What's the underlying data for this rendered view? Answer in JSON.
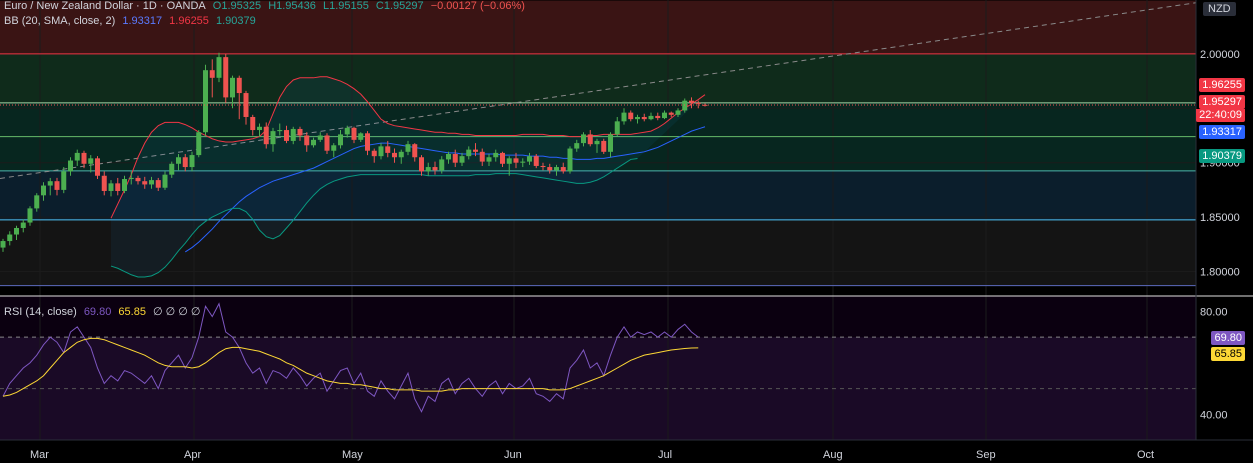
{
  "header": {
    "symbol": "Euro / New Zealand Dollar · 1D · OANDA",
    "open": "O1.95325",
    "high": "H1.95436",
    "low": "L1.95155",
    "close": "C1.95297",
    "change": "−0.00127 (−0.06%)",
    "bb_label": "BB (20, SMA, close, 2)",
    "bb_basis": "1.93317",
    "bb_upper": "1.96255",
    "bb_lower": "1.90379",
    "rsi_label": "RSI (14, close)",
    "rsi_value": "69.80",
    "rsi_ma": "65.85",
    "rsi_extra": "∅ ∅ ∅ ∅"
  },
  "currency": "NZD",
  "price_labels": {
    "upper": "1.96255",
    "last": "1.95297",
    "countdown": "22:40:09",
    "basis": "1.93317",
    "lower": "1.90379",
    "rsi": "69.80",
    "rsi_ma": "65.85"
  },
  "colors": {
    "up": "#26a69a",
    "down": "#ef5350",
    "upper_band": "#f23645",
    "basis": "#2962ff",
    "lower_band": "#089981",
    "rsi": "#7e57c2",
    "rsi_ma": "#fdd835"
  },
  "chart_data": [
    {
      "type": "candlestick",
      "title": "Euro / New Zealand Dollar · 1D · OANDA",
      "x_ticks": [
        "Mar",
        "Apr",
        "May",
        "Jun",
        "Jul",
        "Aug",
        "Sep",
        "Oct"
      ],
      "y_ticks": [
        "2.00000",
        "1.95000",
        "1.90000",
        "1.85000",
        "1.80000"
      ],
      "ylim": [
        1.7775,
        2.0495
      ],
      "zones": [
        {
          "from": 2.0,
          "to": 2.049,
          "color": "#ef5350"
        },
        {
          "from": 1.955,
          "to": 2.0,
          "color": "#26a69a"
        },
        {
          "from": 1.8925,
          "to": 1.955,
          "color": "#00897b"
        },
        {
          "from": 1.8475,
          "to": 1.8925,
          "color": "#1e88e5"
        }
      ],
      "levels": [
        2.0,
        1.955,
        1.924,
        1.8925,
        1.8475,
        1.787
      ],
      "candles": [
        [
          1.822,
          1.83,
          1.818,
          1.828
        ],
        [
          1.828,
          1.837,
          1.824,
          1.834
        ],
        [
          1.834,
          1.842,
          1.829,
          1.84
        ],
        [
          1.84,
          1.848,
          1.836,
          1.845
        ],
        [
          1.845,
          1.86,
          1.842,
          1.858
        ],
        [
          1.858,
          1.872,
          1.855,
          1.87
        ],
        [
          1.87,
          1.882,
          1.865,
          1.879
        ],
        [
          1.879,
          1.886,
          1.87,
          1.883
        ],
        [
          1.883,
          1.886,
          1.87,
          1.875
        ],
        [
          1.875,
          1.896,
          1.872,
          1.892
        ],
        [
          1.892,
          1.905,
          1.888,
          1.902
        ],
        [
          1.902,
          1.912,
          1.897,
          1.909
        ],
        [
          1.909,
          1.911,
          1.895,
          1.899
        ],
        [
          1.899,
          1.907,
          1.891,
          1.904
        ],
        [
          1.904,
          1.906,
          1.885,
          1.888
        ],
        [
          1.888,
          1.892,
          1.87,
          1.874
        ],
        [
          1.874,
          1.884,
          1.869,
          1.881
        ],
        [
          1.881,
          1.886,
          1.87,
          1.874
        ],
        [
          1.874,
          1.888,
          1.872,
          1.885
        ],
        [
          1.885,
          1.892,
          1.88,
          1.886
        ],
        [
          1.886,
          1.888,
          1.88,
          1.883
        ],
        [
          1.883,
          1.887,
          1.876,
          1.88
        ],
        [
          1.88,
          1.887,
          1.876,
          1.884
        ],
        [
          1.884,
          1.886,
          1.874,
          1.877
        ],
        [
          1.877,
          1.892,
          1.875,
          1.889
        ],
        [
          1.889,
          1.901,
          1.886,
          1.899
        ],
        [
          1.899,
          1.908,
          1.893,
          1.905
        ],
        [
          1.905,
          1.908,
          1.892,
          1.896
        ],
        [
          1.896,
          1.91,
          1.892,
          1.907
        ],
        [
          1.907,
          1.93,
          1.905,
          1.928
        ],
        [
          1.928,
          1.99,
          1.925,
          1.985
        ],
        [
          1.985,
          1.995,
          1.96,
          1.978
        ],
        [
          1.978,
          2.001,
          1.974,
          1.997
        ],
        [
          1.997,
          2.0,
          1.955,
          1.96
        ],
        [
          1.96,
          1.98,
          1.95,
          1.978
        ],
        [
          1.978,
          1.98,
          1.94,
          1.964
        ],
        [
          1.964,
          1.966,
          1.935,
          1.942
        ],
        [
          1.942,
          1.944,
          1.925,
          1.93
        ],
        [
          1.93,
          1.936,
          1.924,
          1.933
        ],
        [
          1.933,
          1.937,
          1.913,
          1.917
        ],
        [
          1.917,
          1.932,
          1.91,
          1.929
        ],
        [
          1.929,
          1.936,
          1.925,
          1.93
        ],
        [
          1.93,
          1.934,
          1.918,
          1.92
        ],
        [
          1.92,
          1.933,
          1.917,
          1.931
        ],
        [
          1.931,
          1.933,
          1.92,
          1.925
        ],
        [
          1.925,
          1.928,
          1.91,
          1.916
        ],
        [
          1.916,
          1.923,
          1.914,
          1.921
        ],
        [
          1.921,
          1.928,
          1.919,
          1.925
        ],
        [
          1.925,
          1.927,
          1.908,
          1.911
        ],
        [
          1.911,
          1.918,
          1.905,
          1.916
        ],
        [
          1.916,
          1.93,
          1.913,
          1.926
        ],
        [
          1.926,
          1.934,
          1.923,
          1.932
        ],
        [
          1.932,
          1.933,
          1.918,
          1.921
        ],
        [
          1.921,
          1.928,
          1.919,
          1.927
        ],
        [
          1.927,
          1.929,
          1.907,
          1.911
        ],
        [
          1.911,
          1.913,
          1.9,
          1.906
        ],
        [
          1.906,
          1.918,
          1.903,
          1.915
        ],
        [
          1.915,
          1.92,
          1.905,
          1.909
        ],
        [
          1.909,
          1.913,
          1.9,
          1.905
        ],
        [
          1.905,
          1.912,
          1.899,
          1.91
        ],
        [
          1.91,
          1.92,
          1.907,
          1.917
        ],
        [
          1.917,
          1.918,
          1.901,
          1.905
        ],
        [
          1.905,
          1.907,
          1.888,
          1.892
        ],
        [
          1.892,
          1.9,
          1.888,
          1.896
        ],
        [
          1.896,
          1.901,
          1.889,
          1.893
        ],
        [
          1.893,
          1.906,
          1.89,
          1.903
        ],
        [
          1.903,
          1.91,
          1.899,
          1.908
        ],
        [
          1.908,
          1.912,
          1.896,
          1.9
        ],
        [
          1.9,
          1.909,
          1.897,
          1.906
        ],
        [
          1.906,
          1.915,
          1.903,
          1.912
        ],
        [
          1.912,
          1.918,
          1.906,
          1.91
        ],
        [
          1.91,
          1.913,
          1.897,
          1.901
        ],
        [
          1.901,
          1.908,
          1.897,
          1.905
        ],
        [
          1.905,
          1.912,
          1.901,
          1.909
        ],
        [
          1.909,
          1.91,
          1.896,
          1.899
        ],
        [
          1.899,
          1.906,
          1.888,
          1.904
        ],
        [
          1.904,
          1.909,
          1.895,
          1.9
        ],
        [
          1.9,
          1.904,
          1.896,
          1.901
        ],
        [
          1.901,
          1.909,
          1.898,
          1.906
        ],
        [
          1.906,
          1.908,
          1.895,
          1.897
        ],
        [
          1.897,
          1.9,
          1.893,
          1.896
        ],
        [
          1.896,
          1.899,
          1.89,
          1.893
        ],
        [
          1.893,
          1.898,
          1.888,
          1.896
        ],
        [
          1.896,
          1.9,
          1.89,
          1.892
        ],
        [
          1.892,
          1.915,
          1.89,
          1.913
        ],
        [
          1.913,
          1.921,
          1.91,
          1.918
        ],
        [
          1.918,
          1.928,
          1.915,
          1.926
        ],
        [
          1.926,
          1.93,
          1.915,
          1.917
        ],
        [
          1.917,
          1.922,
          1.909,
          1.92
        ],
        [
          1.92,
          1.922,
          1.908,
          1.91
        ],
        [
          1.91,
          1.928,
          1.905,
          1.926
        ],
        [
          1.926,
          1.942,
          1.924,
          1.938
        ],
        [
          1.938,
          1.95,
          1.935,
          1.946
        ],
        [
          1.946,
          1.948,
          1.938,
          1.94
        ],
        [
          1.94,
          1.944,
          1.936,
          1.942
        ],
        [
          1.942,
          1.945,
          1.938,
          1.94
        ],
        [
          1.94,
          1.946,
          1.939,
          1.943
        ],
        [
          1.943,
          1.946,
          1.939,
          1.941
        ],
        [
          1.941,
          1.948,
          1.94,
          1.946
        ],
        [
          1.946,
          1.947,
          1.942,
          1.944
        ],
        [
          1.944,
          1.95,
          1.942,
          1.948
        ],
        [
          1.948,
          1.959,
          1.946,
          1.957
        ],
        [
          1.957,
          1.96,
          1.95,
          1.955
        ],
        [
          1.955,
          1.957,
          1.95,
          1.954
        ],
        [
          1.9532,
          1.9544,
          1.9516,
          1.953
        ]
      ],
      "bb_upper": [
        1.849,
        1.862,
        1.875,
        1.889,
        1.905,
        1.918,
        1.928,
        1.934,
        1.937,
        1.937,
        1.937,
        1.935,
        1.932,
        1.928,
        1.925,
        1.922,
        1.92,
        1.919,
        1.919,
        1.92,
        1.921,
        1.922,
        1.924,
        1.93,
        1.945,
        1.96,
        1.97,
        1.976,
        1.978,
        1.978,
        1.978,
        1.979,
        1.979,
        1.977,
        1.975,
        1.972,
        1.968,
        1.963,
        1.956,
        1.948,
        1.94,
        1.936,
        1.934,
        1.933,
        1.932,
        1.931,
        1.93,
        1.929,
        1.928,
        1.928,
        1.927,
        1.927,
        1.926,
        1.926,
        1.925,
        1.925,
        1.925,
        1.925,
        1.925,
        1.925,
        1.925,
        1.926,
        1.926,
        1.926,
        1.926,
        1.925,
        1.925,
        1.925,
        1.924,
        1.924,
        1.924,
        1.925,
        1.925,
        1.926,
        1.926,
        1.926,
        1.926,
        1.926,
        1.927,
        1.928,
        1.929,
        1.932,
        1.936,
        1.941,
        1.946,
        1.95,
        1.954,
        1.958,
        1.9625
      ],
      "bb_basis": [
        1.818,
        1.822,
        1.827,
        1.833,
        1.839,
        1.846,
        1.852,
        1.858,
        1.864,
        1.869,
        1.873,
        1.877,
        1.88,
        1.883,
        1.885,
        1.887,
        1.889,
        1.891,
        1.893,
        1.895,
        1.898,
        1.901,
        1.904,
        1.907,
        1.91,
        1.913,
        1.915,
        1.916,
        1.917,
        1.918,
        1.918,
        1.917,
        1.916,
        1.915,
        1.914,
        1.913,
        1.912,
        1.911,
        1.91,
        1.909,
        1.909,
        1.908,
        1.908,
        1.908,
        1.908,
        1.908,
        1.908,
        1.907,
        1.907,
        1.907,
        1.907,
        1.906,
        1.906,
        1.906,
        1.905,
        1.905,
        1.904,
        1.904,
        1.903,
        1.903,
        1.903,
        1.904,
        1.904,
        1.905,
        1.906,
        1.907,
        1.908,
        1.909,
        1.91,
        1.912,
        1.914,
        1.917,
        1.92,
        1.923,
        1.926,
        1.929,
        1.931,
        1.933
      ],
      "bb_lower": [
        1.805,
        1.803,
        1.8,
        1.797,
        1.795,
        1.795,
        1.796,
        1.799,
        1.804,
        1.811,
        1.819,
        1.826,
        1.834,
        1.841,
        1.846,
        1.85,
        1.853,
        1.856,
        1.858,
        1.858,
        1.855,
        1.848,
        1.838,
        1.832,
        1.83,
        1.833,
        1.84,
        1.847,
        1.855,
        1.863,
        1.87,
        1.876,
        1.88,
        1.883,
        1.885,
        1.887,
        1.888,
        1.889,
        1.889,
        1.889,
        1.889,
        1.889,
        1.889,
        1.889,
        1.889,
        1.889,
        1.889,
        1.888,
        1.888,
        1.888,
        1.888,
        1.888,
        1.888,
        1.888,
        1.889,
        1.889,
        1.889,
        1.89,
        1.89,
        1.89,
        1.89,
        1.889,
        1.888,
        1.887,
        1.886,
        1.885,
        1.884,
        1.883,
        1.882,
        1.881,
        1.881,
        1.882,
        1.884,
        1.887,
        1.891,
        1.895,
        1.899,
        1.903,
        1.9038
      ]
    },
    {
      "type": "line",
      "title": "RSI (14, close)",
      "y_ticks": [
        "80.00",
        "40.00"
      ],
      "ylim": [
        30,
        86
      ],
      "bands": [
        70,
        50,
        30
      ],
      "rsi": [
        47,
        52,
        55,
        58,
        60,
        63,
        67,
        70,
        68,
        64,
        72,
        74,
        70,
        66,
        58,
        52,
        55,
        53,
        57,
        56,
        54,
        52,
        55,
        50,
        57,
        60,
        63,
        58,
        62,
        70,
        82,
        78,
        83,
        72,
        70,
        66,
        60,
        56,
        58,
        52,
        57,
        56,
        54,
        58,
        55,
        51,
        54,
        56,
        49,
        53,
        57,
        58,
        52,
        56,
        49,
        47,
        53,
        49,
        46,
        51,
        56,
        46,
        41,
        47,
        45,
        52,
        54,
        48,
        52,
        54,
        50,
        47,
        51,
        53,
        48,
        52,
        50,
        51,
        54,
        48,
        47,
        45,
        48,
        46,
        58,
        61,
        65,
        58,
        60,
        55,
        63,
        70,
        74,
        70,
        72,
        71,
        72,
        70,
        72,
        70,
        73,
        75,
        72,
        70
      ],
      "rsi_ma": [
        47,
        47.5,
        48.5,
        50,
        51.5,
        53,
        55,
        58,
        61,
        64,
        66,
        68,
        69,
        69.5,
        69.5,
        69,
        68,
        67,
        66,
        65,
        64,
        63,
        61.5,
        60,
        59,
        58.5,
        58.5,
        58.5,
        58,
        58.5,
        60,
        62,
        64,
        65.5,
        66,
        66,
        65.5,
        65,
        64.5,
        63.5,
        62.5,
        61.5,
        60,
        59,
        57.5,
        56,
        55,
        54,
        53,
        52.5,
        52,
        52,
        51.5,
        51.5,
        51,
        50.5,
        50,
        50,
        49.5,
        49.5,
        49.5,
        49.5,
        49,
        49,
        49,
        49,
        49.5,
        49.5,
        50,
        50,
        50,
        50,
        50,
        50,
        50,
        50,
        50,
        50,
        50,
        50,
        50,
        49.5,
        49.5,
        49.5,
        50,
        51,
        52,
        53,
        54,
        55,
        56.5,
        58,
        59.5,
        61,
        62,
        63,
        63.5,
        64,
        64.5,
        65,
        65.3,
        65.6,
        65.8,
        65.85
      ]
    }
  ]
}
